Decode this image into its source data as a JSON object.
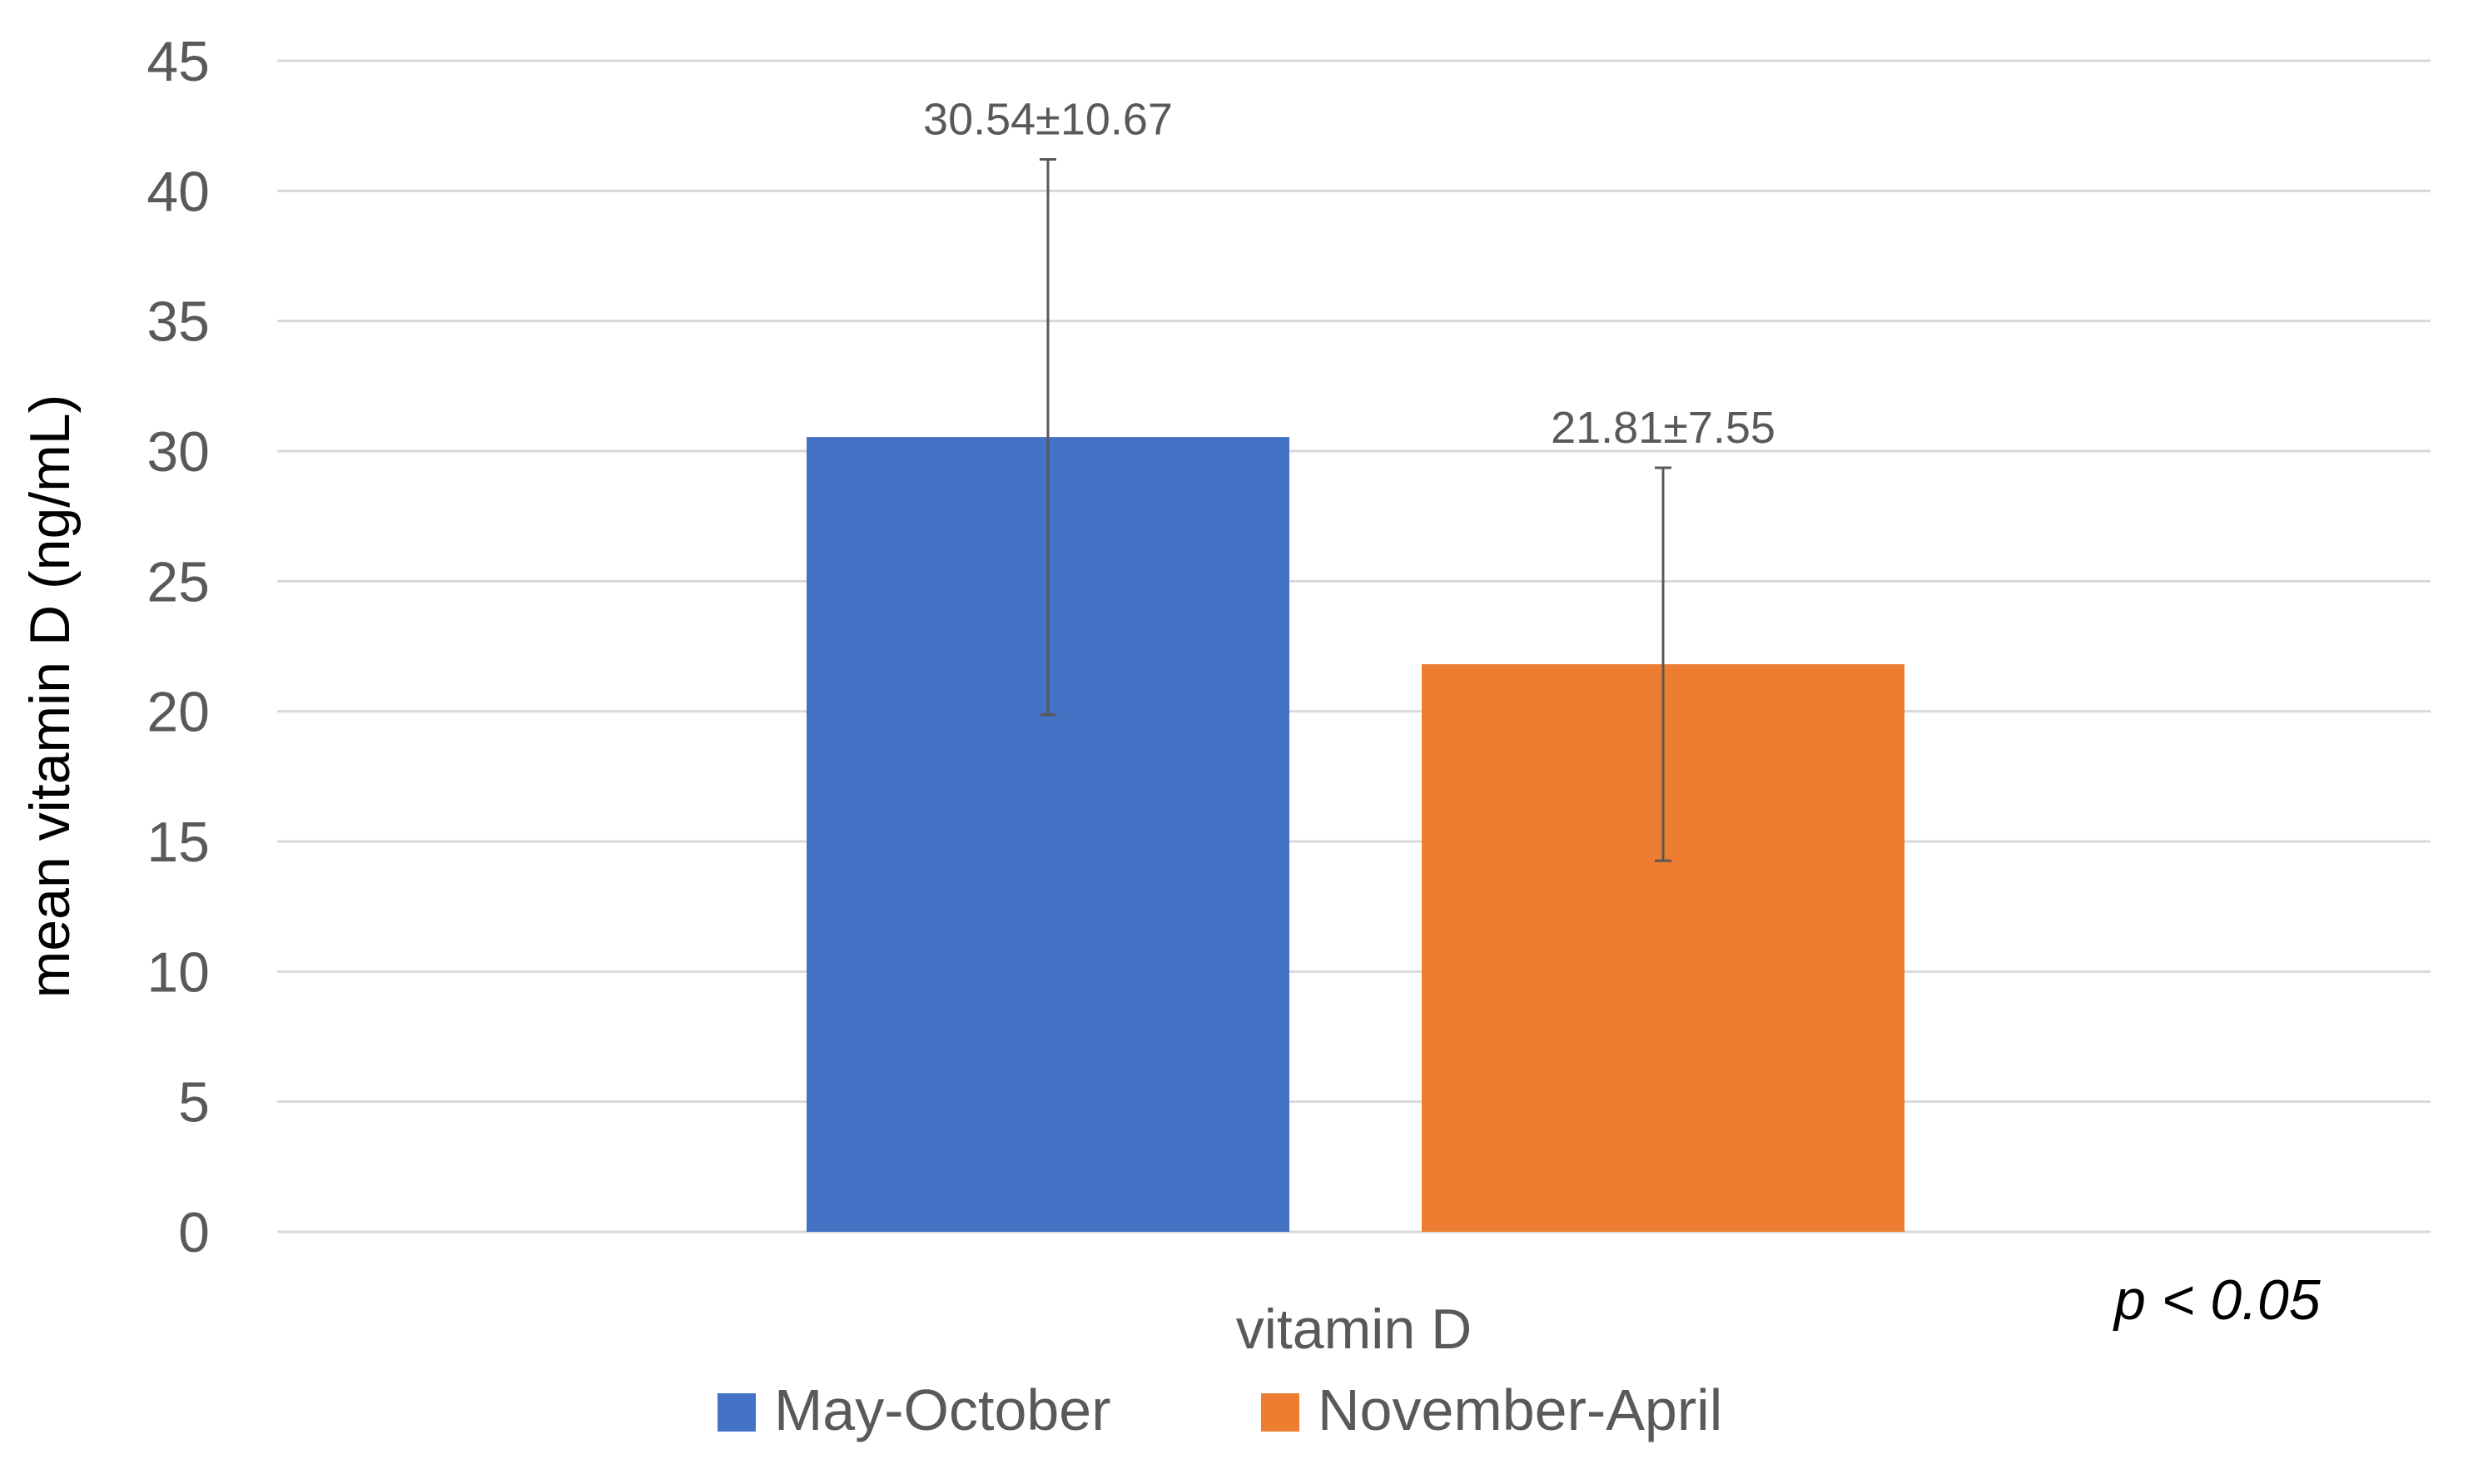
{
  "chart_data": {
    "type": "bar",
    "title": "",
    "xlabel": "vitamin D",
    "ylabel": "mean vitamin D (ng/mL)",
    "categories": [
      "vitamin D"
    ],
    "ylim": [
      0,
      45
    ],
    "yticks": [
      0,
      5,
      10,
      15,
      20,
      25,
      30,
      35,
      40,
      45
    ],
    "grid": true,
    "legend_position": "bottom",
    "annotation": "p < 0.05",
    "series": [
      {
        "name": "May-October",
        "values": [
          30.54
        ],
        "error": [
          10.67
        ],
        "data_label": "30.54±10.67",
        "color": "#4472C4"
      },
      {
        "name": "November-April",
        "values": [
          21.81
        ],
        "error": [
          7.55
        ],
        "data_label": "21.81±7.55",
        "color": "#ED7D31"
      }
    ],
    "colors": {
      "grid": "#D9D9D9",
      "tick_label": "#595959",
      "axis_title": "#000000",
      "error_bar": "#595959"
    }
  }
}
